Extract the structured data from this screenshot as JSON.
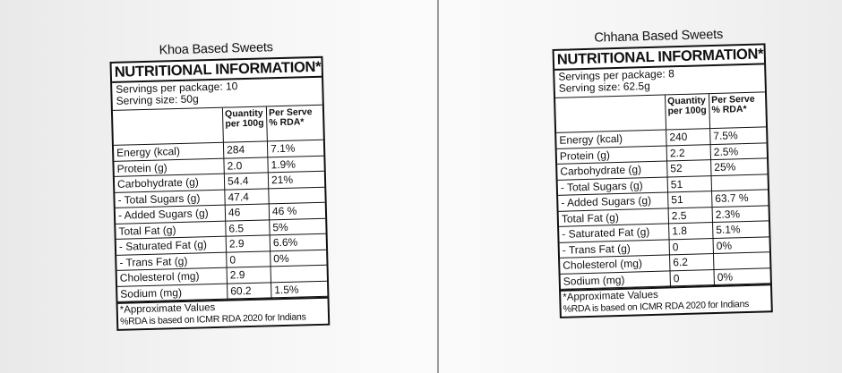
{
  "labels": [
    {
      "title": "Khoa Based Sweets",
      "header": "NUTRITIONAL INFORMATION*",
      "servings": "Servings per package: 10",
      "serving_size": "Serving size: 50g",
      "col_qty_1": "Quantity",
      "col_qty_2": "per 100g",
      "col_rda_1": "Per Serve",
      "col_rda_2": "% RDA*",
      "rows": [
        {
          "name": "Energy (kcal)",
          "qty": "284",
          "rda": "7.1%"
        },
        {
          "name": "Protein (g)",
          "qty": "2.0",
          "rda": "1.9%"
        },
        {
          "name": "Carbohydrate (g)",
          "qty": "54.4",
          "rda": "21%"
        },
        {
          "name": "- Total Sugars (g)",
          "qty": "47.4",
          "rda": ""
        },
        {
          "name": "- Added Sugars (g)",
          "qty": "46",
          "rda": "46 %"
        },
        {
          "name": "Total Fat (g)",
          "qty": "6.5",
          "rda": "5%"
        },
        {
          "name": "- Saturated Fat (g)",
          "qty": "2.9",
          "rda": "6.6%"
        },
        {
          "name": "- Trans Fat (g)",
          "qty": "0",
          "rda": "0%"
        },
        {
          "name": "Cholesterol (mg)",
          "qty": "2.9",
          "rda": ""
        },
        {
          "name": "Sodium (mg)",
          "qty": "60.2",
          "rda": "1.5%"
        }
      ],
      "footnote1": "*Approximate Values",
      "footnote2": "%RDA is based on ICMR RDA 2020 for Indians"
    },
    {
      "title": "Chhana Based Sweets",
      "header": "NUTRITIONAL INFORMATION*",
      "servings": "Servings per package: 8",
      "serving_size": "Serving size: 62.5g",
      "col_qty_1": "Quantity",
      "col_qty_2": "per 100g",
      "col_rda_1": "Per Serve",
      "col_rda_2": "% RDA*",
      "rows": [
        {
          "name": "Energy (kcal)",
          "qty": "240",
          "rda": "7.5%"
        },
        {
          "name": "Protein (g)",
          "qty": "2.2",
          "rda": "2.5%"
        },
        {
          "name": "Carbohydrate (g)",
          "qty": "52",
          "rda": "25%"
        },
        {
          "name": "- Total Sugars (g)",
          "qty": "51",
          "rda": ""
        },
        {
          "name": "- Added Sugars (g)",
          "qty": "51",
          "rda": "63.7 %"
        },
        {
          "name": "Total Fat (g)",
          "qty": "2.5",
          "rda": "2.3%"
        },
        {
          "name": "- Saturated Fat (g)",
          "qty": "1.8",
          "rda": "5.1%"
        },
        {
          "name": "- Trans Fat (g)",
          "qty": "0",
          "rda": "0%"
        },
        {
          "name": "Cholesterol (mg)",
          "qty": "6.2",
          "rda": ""
        },
        {
          "name": "Sodium (mg)",
          "qty": "0",
          "rda": "0%"
        }
      ],
      "footnote1": "*Approximate Values",
      "footnote2": "%RDA is based on ICMR RDA 2020 for Indians"
    }
  ]
}
